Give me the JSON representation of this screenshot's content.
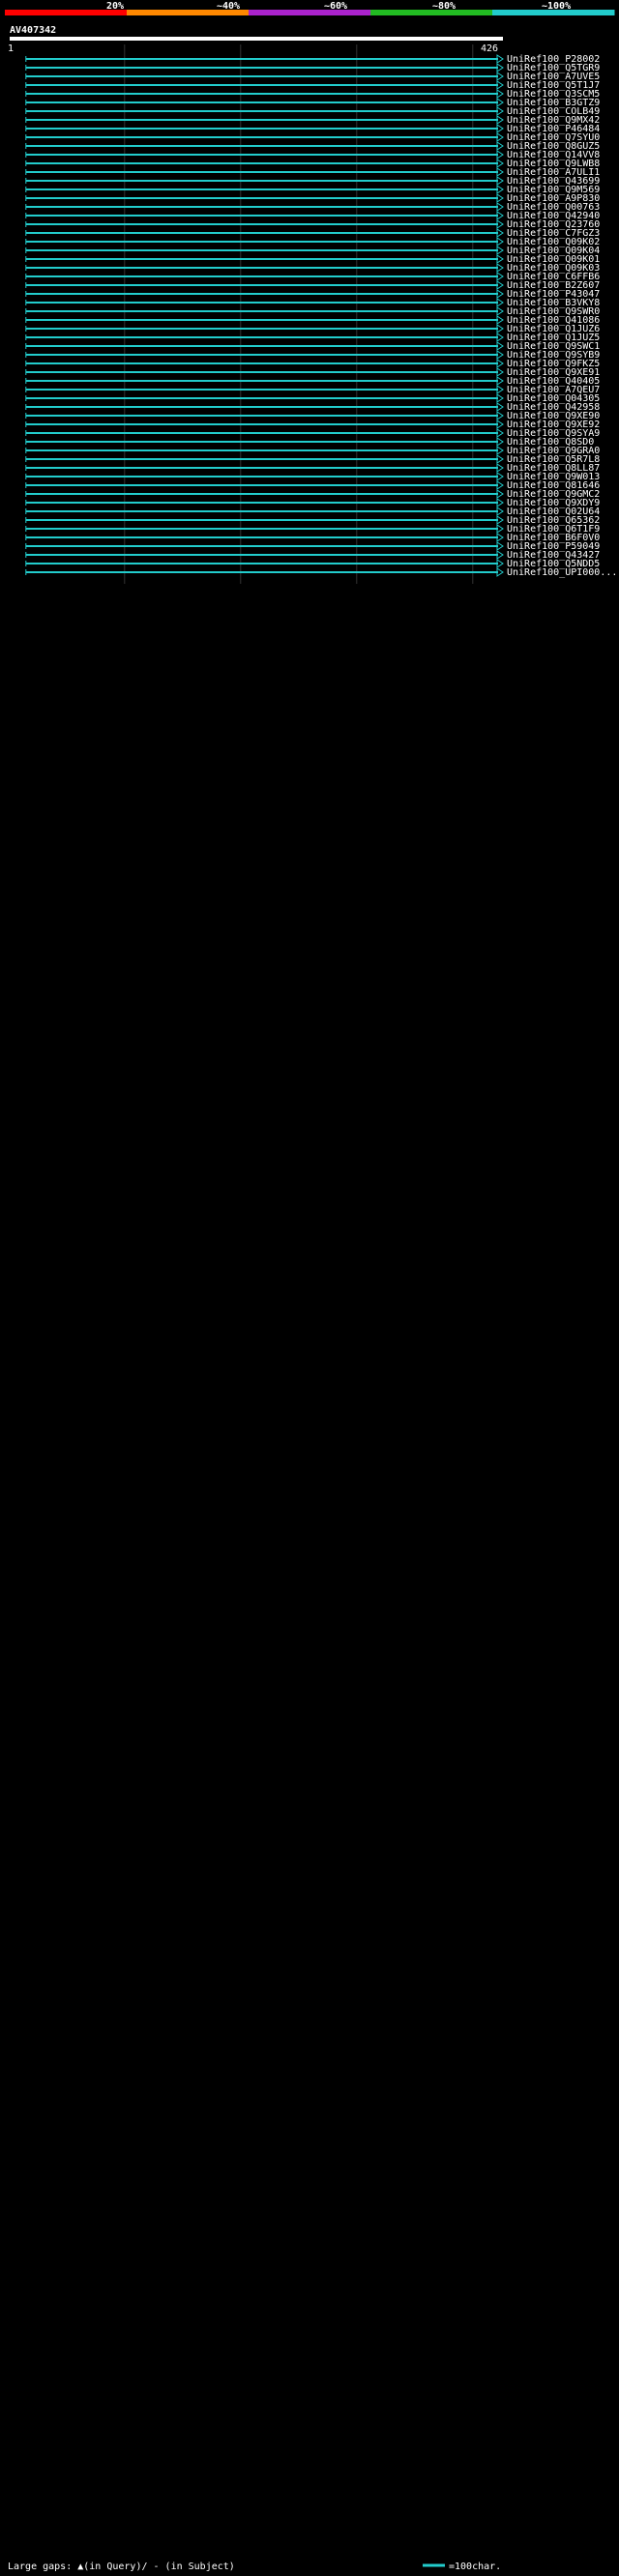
{
  "chart_data": {
    "type": "bar",
    "title": "AV407342",
    "query_range": {
      "start": "1",
      "end": "426"
    },
    "query_length": 426,
    "identity_scale": {
      "ticks": [
        "20%",
        "~40%",
        "~60%",
        "~80%",
        "~100%"
      ],
      "colors": [
        "#ff0000",
        "#ff8800",
        "#aa22cc",
        "#22bb22",
        "#22cccc"
      ]
    },
    "footer": {
      "gaps_legend": "Large gaps: ▲(in Query)/ - (in Subject)",
      "scale_legend": "=100char."
    },
    "hits": [
      {
        "id": "UniRef100_P28002",
        "start": 15,
        "end": 426,
        "color": "#22cccc"
      },
      {
        "id": "UniRef100_Q5TGR9",
        "start": 15,
        "end": 426,
        "color": "#22cccc"
      },
      {
        "id": "UniRef100_A7UVE5",
        "start": 15,
        "end": 426,
        "color": "#22cccc"
      },
      {
        "id": "UniRef100_Q5T1J7",
        "start": 15,
        "end": 426,
        "color": "#22cccc"
      },
      {
        "id": "UniRef100_Q3SCM5",
        "start": 15,
        "end": 426,
        "color": "#22cccc"
      },
      {
        "id": "UniRef100_B3GTZ9",
        "start": 15,
        "end": 426,
        "color": "#22cccc"
      },
      {
        "id": "UniRef100_COLB49",
        "start": 15,
        "end": 426,
        "color": "#22cccc"
      },
      {
        "id": "UniRef100_Q9MX42",
        "start": 15,
        "end": 426,
        "color": "#22cccc"
      },
      {
        "id": "UniRef100_P46484",
        "start": 15,
        "end": 426,
        "color": "#22cccc"
      },
      {
        "id": "UniRef100_Q7SYU0",
        "start": 15,
        "end": 426,
        "color": "#22cccc"
      },
      {
        "id": "UniRef100_Q8GUZ5",
        "start": 15,
        "end": 426,
        "color": "#22cccc"
      },
      {
        "id": "UniRef100_Q14VV8",
        "start": 15,
        "end": 426,
        "color": "#22cccc"
      },
      {
        "id": "UniRef100_Q9LWB8",
        "start": 15,
        "end": 426,
        "color": "#22cccc"
      },
      {
        "id": "UniRef100_A7ULI1",
        "start": 15,
        "end": 426,
        "color": "#22cccc"
      },
      {
        "id": "UniRef100_Q43699",
        "start": 15,
        "end": 426,
        "color": "#22cccc"
      },
      {
        "id": "UniRef100_Q9M569",
        "start": 15,
        "end": 426,
        "color": "#22cccc"
      },
      {
        "id": "UniRef100_A9P830",
        "start": 15,
        "end": 426,
        "color": "#22cccc"
      },
      {
        "id": "UniRef100_Q00763",
        "start": 15,
        "end": 426,
        "color": "#22cccc"
      },
      {
        "id": "UniRef100_Q42940",
        "start": 15,
        "end": 426,
        "color": "#22cccc"
      },
      {
        "id": "UniRef100_Q23760",
        "start": 15,
        "end": 426,
        "color": "#22cccc"
      },
      {
        "id": "UniRef100_C7FGZ3",
        "start": 15,
        "end": 426,
        "color": "#22cccc"
      },
      {
        "id": "UniRef100_Q09K02",
        "start": 15,
        "end": 426,
        "color": "#22cccc"
      },
      {
        "id": "UniRef100_Q09K04",
        "start": 15,
        "end": 426,
        "color": "#22cccc"
      },
      {
        "id": "UniRef100_Q09K01",
        "start": 15,
        "end": 426,
        "color": "#22cccc"
      },
      {
        "id": "UniRef100_Q09K03",
        "start": 15,
        "end": 426,
        "color": "#22cccc"
      },
      {
        "id": "UniRef100_C6FFB6",
        "start": 15,
        "end": 426,
        "color": "#22cccc"
      },
      {
        "id": "UniRef100_B2Z607",
        "start": 15,
        "end": 426,
        "color": "#22cccc"
      },
      {
        "id": "UniRef100_P43047",
        "start": 15,
        "end": 426,
        "color": "#22cccc"
      },
      {
        "id": "UniRef100_B3VKY8",
        "start": 15,
        "end": 426,
        "color": "#22cccc"
      },
      {
        "id": "UniRef100_Q9SWR0",
        "start": 15,
        "end": 426,
        "color": "#22cccc"
      },
      {
        "id": "UniRef100_Q41086",
        "start": 15,
        "end": 426,
        "color": "#22cccc"
      },
      {
        "id": "UniRef100_Q1JUZ6",
        "start": 15,
        "end": 426,
        "color": "#22cccc"
      },
      {
        "id": "UniRef100_Q1JUZ5",
        "start": 15,
        "end": 426,
        "color": "#22cccc"
      },
      {
        "id": "UniRef100_Q9SWC1",
        "start": 15,
        "end": 426,
        "color": "#22cccc"
      },
      {
        "id": "UniRef100_Q9SYB9",
        "start": 15,
        "end": 426,
        "color": "#22cccc"
      },
      {
        "id": "UniRef100_Q9FKZ5",
        "start": 15,
        "end": 426,
        "color": "#22cccc"
      },
      {
        "id": "UniRef100_Q9XE91",
        "start": 15,
        "end": 426,
        "color": "#22cccc"
      },
      {
        "id": "UniRef100_Q40405",
        "start": 15,
        "end": 426,
        "color": "#22cccc"
      },
      {
        "id": "UniRef100_A7QEU7",
        "start": 15,
        "end": 426,
        "color": "#22cccc"
      },
      {
        "id": "UniRef100_Q04305",
        "start": 15,
        "end": 426,
        "color": "#22cccc"
      },
      {
        "id": "UniRef100_Q42958",
        "start": 15,
        "end": 426,
        "color": "#22cccc"
      },
      {
        "id": "UniRef100_Q9XE90",
        "start": 15,
        "end": 426,
        "color": "#22cccc"
      },
      {
        "id": "UniRef100_Q9XE92",
        "start": 15,
        "end": 426,
        "color": "#22cccc"
      },
      {
        "id": "UniRef100_Q9SYA9",
        "start": 15,
        "end": 426,
        "color": "#22cccc"
      },
      {
        "id": "UniRef100_Q8SD0",
        "start": 15,
        "end": 426,
        "color": "#22cccc"
      },
      {
        "id": "UniRef100_Q9GRA0",
        "start": 15,
        "end": 426,
        "color": "#22cccc"
      },
      {
        "id": "UniRef100_Q5R7L8",
        "start": 15,
        "end": 426,
        "color": "#22cccc"
      },
      {
        "id": "UniRef100_Q8LL87",
        "start": 15,
        "end": 426,
        "color": "#22cccc"
      },
      {
        "id": "UniRef100_Q9W013",
        "start": 15,
        "end": 426,
        "color": "#22cccc"
      },
      {
        "id": "UniRef100_Q81646",
        "start": 15,
        "end": 426,
        "color": "#22cccc"
      },
      {
        "id": "UniRef100_Q9GMC2",
        "start": 15,
        "end": 426,
        "color": "#22cccc"
      },
      {
        "id": "UniRef100_Q9XDY9",
        "start": 15,
        "end": 426,
        "color": "#22cccc"
      },
      {
        "id": "UniRef100_Q02U64",
        "start": 15,
        "end": 426,
        "color": "#22cccc"
      },
      {
        "id": "UniRef100_Q65362",
        "start": 15,
        "end": 426,
        "color": "#22cccc"
      },
      {
        "id": "UniRef100_Q6T1F9",
        "start": 15,
        "end": 426,
        "color": "#22cccc"
      },
      {
        "id": "UniRef100_B6F0V0",
        "start": 15,
        "end": 426,
        "color": "#22cccc"
      },
      {
        "id": "UniRef100_P59049",
        "start": 15,
        "end": 426,
        "color": "#22cccc"
      },
      {
        "id": "UniRef100_Q43427",
        "start": 15,
        "end": 426,
        "color": "#22cccc"
      },
      {
        "id": "UniRef100_Q5NDD5",
        "start": 15,
        "end": 426,
        "color": "#22cccc"
      },
      {
        "id": "UniRef100_UPI000...",
        "start": 15,
        "end": 426,
        "color": "#22cccc"
      }
    ]
  }
}
